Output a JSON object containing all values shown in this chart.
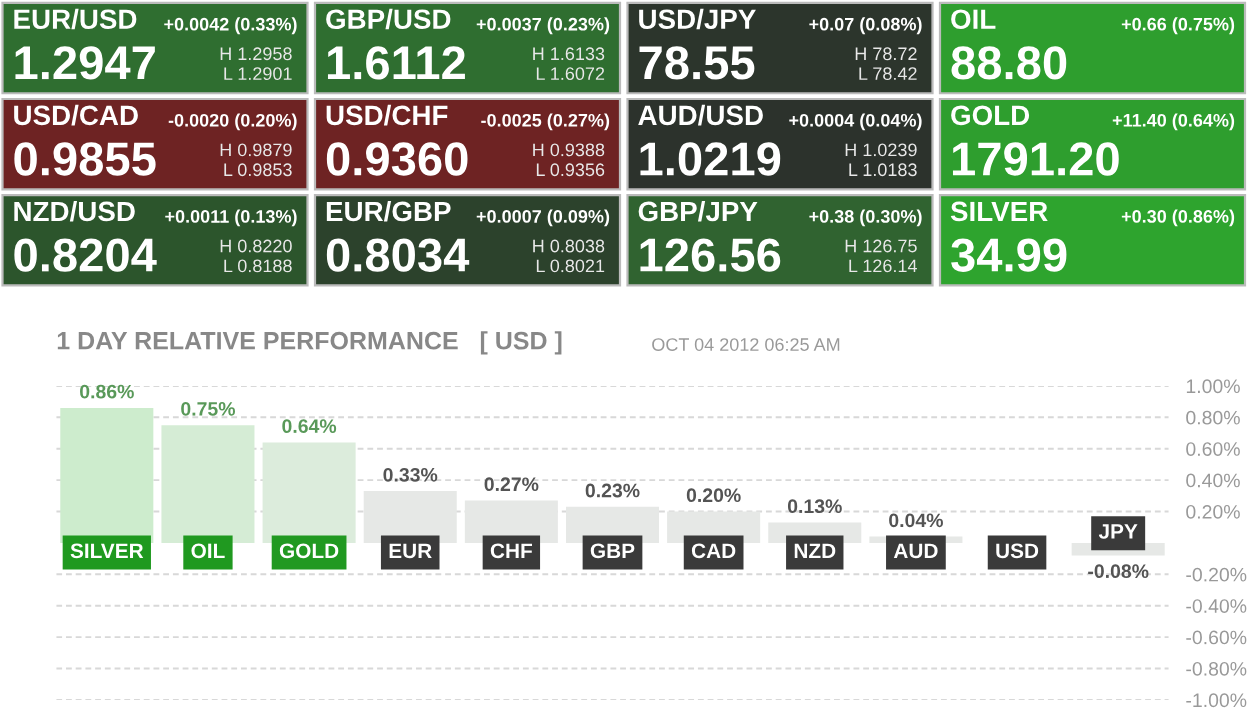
{
  "chart_data": [
    {
      "type": "other",
      "categories": [
        "EUR/USD",
        "GBP/USD",
        "USD/JPY",
        "OIL",
        "USD/CAD",
        "USD/CHF",
        "AUD/USD",
        "GOLD",
        "NZD/USD",
        "EUR/GBP",
        "GBP/JPY",
        "SILVER"
      ],
      "value_labels": [
        "1.2947",
        "1.6112",
        "78.55",
        "88.80",
        "0.9855",
        "0.9360",
        "1.0219",
        "1791.20",
        "0.8204",
        "0.8034",
        "126.56",
        "34.99"
      ],
      "colors": [
        "#2f6e30",
        "#2f6e30",
        "#2c352c",
        "#2e9e2e",
        "#6e2323",
        "#6e2323",
        "#2c322c",
        "#2e9e2e",
        "#2c552c",
        "#2c422c",
        "#306330",
        "#2ea42e"
      ],
      "annotations": [
        {
          "text": "+0.0042 (0.33%)",
          "x": "EUR/USD"
        },
        {
          "text": "H 1.2958",
          "x": "EUR/USD"
        },
        {
          "text": "L 1.2901",
          "x": "EUR/USD"
        },
        {
          "text": "+0.0037 (0.23%)",
          "x": "GBP/USD"
        },
        {
          "text": "H 1.6133",
          "x": "GBP/USD"
        },
        {
          "text": "L 1.6072",
          "x": "GBP/USD"
        },
        {
          "text": "+0.07 (0.08%)",
          "x": "USD/JPY"
        },
        {
          "text": "H 78.72",
          "x": "USD/JPY"
        },
        {
          "text": "L 78.42",
          "x": "USD/JPY"
        },
        {
          "text": "+0.66 (0.75%)",
          "x": "OIL"
        },
        {
          "text": "-0.0020 (0.20%)",
          "x": "USD/CAD"
        },
        {
          "text": "H 0.9879",
          "x": "USD/CAD"
        },
        {
          "text": "L 0.9853",
          "x": "USD/CAD"
        },
        {
          "text": "-0.0025 (0.27%)",
          "x": "USD/CHF"
        },
        {
          "text": "H 0.9388",
          "x": "USD/CHF"
        },
        {
          "text": "L 0.9356",
          "x": "USD/CHF"
        },
        {
          "text": "+0.0004 (0.04%)",
          "x": "AUD/USD"
        },
        {
          "text": "H 1.0239",
          "x": "AUD/USD"
        },
        {
          "text": "L 1.0183",
          "x": "AUD/USD"
        },
        {
          "text": "+11.40 (0.64%)",
          "x": "GOLD"
        },
        {
          "text": "+0.0011 (0.13%)",
          "x": "NZD/USD"
        },
        {
          "text": "H 0.8220",
          "x": "NZD/USD"
        },
        {
          "text": "L 0.8188",
          "x": "NZD/USD"
        },
        {
          "text": "+0.0007 (0.09%)",
          "x": "EUR/GBP"
        },
        {
          "text": "H 0.8038",
          "x": "EUR/GBP"
        },
        {
          "text": "L 0.8021",
          "x": "EUR/GBP"
        },
        {
          "text": "+0.38 (0.30%)",
          "x": "GBP/JPY"
        },
        {
          "text": "H 126.75",
          "x": "GBP/JPY"
        },
        {
          "text": "L 126.14",
          "x": "GBP/JPY"
        },
        {
          "text": "+0.30 (0.86%)",
          "x": "SILVER"
        }
      ]
    },
    {
      "type": "bar",
      "title": "1 DAY RELATIVE PERFORMANCE   [ USD ]",
      "annotations": [
        "OCT 04 2012 06:25 AM"
      ],
      "categories": [
        "SILVER",
        "OIL",
        "GOLD",
        "EUR",
        "CHF",
        "GBP",
        "CAD",
        "NZD",
        "AUD",
        "USD",
        "JPY"
      ],
      "values": [
        0.86,
        0.75,
        0.64,
        0.33,
        0.27,
        0.23,
        0.2,
        0.13,
        0.04,
        0,
        -0.08
      ],
      "value_labels": [
        "0.86%",
        "0.75%",
        "0.64%",
        "0.33%",
        "0.27%",
        "0.23%",
        "0.20%",
        "0.13%",
        "0.04%",
        null,
        "-0.08%"
      ],
      "colors": [
        "#cdeccd",
        "#d5ecd5",
        "#dcecdc",
        "#e6e8e6",
        "#e6e8e6",
        "#e6e8e6",
        "#e6e8e6",
        "#e6e8e6",
        "#e6e8e6",
        "#e6e8e6",
        "#e6e8e6"
      ],
      "ylim": [
        -1.0,
        1.0
      ],
      "yticks": [
        {
          "value": 1.0,
          "label": "1.00%"
        },
        {
          "value": 0.8,
          "label": "0.80%"
        },
        {
          "value": 0.6,
          "label": "0.60%"
        },
        {
          "value": 0.4,
          "label": "0.40%"
        },
        {
          "value": 0.2,
          "label": "0.20%"
        },
        {
          "value": -0.2,
          "label": "-0.20%"
        },
        {
          "value": -0.4,
          "label": "-0.40%"
        },
        {
          "value": -0.6,
          "label": "-0.60%"
        },
        {
          "value": -0.8,
          "label": "-0.80%"
        },
        {
          "value": -1.0,
          "label": "-1.00%"
        }
      ],
      "grid": "y"
    }
  ]
}
